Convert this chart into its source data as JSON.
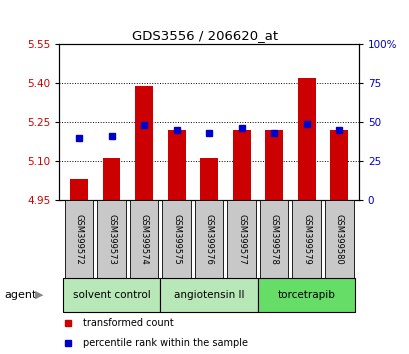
{
  "title": "GDS3556 / 206620_at",
  "samples": [
    "GSM399572",
    "GSM399573",
    "GSM399574",
    "GSM399575",
    "GSM399576",
    "GSM399577",
    "GSM399578",
    "GSM399579",
    "GSM399580"
  ],
  "red_values": [
    5.03,
    5.11,
    5.39,
    5.22,
    5.11,
    5.22,
    5.22,
    5.42,
    5.22
  ],
  "blue_percentiles": [
    40,
    41,
    48,
    45,
    43,
    46,
    43,
    49,
    45
  ],
  "ylim_left": [
    4.95,
    5.55
  ],
  "ylim_right": [
    0,
    100
  ],
  "yticks_left": [
    4.95,
    5.1,
    5.25,
    5.4,
    5.55
  ],
  "yticks_right": [
    0,
    25,
    50,
    75,
    100
  ],
  "ytick_labels_right": [
    "0",
    "25",
    "50",
    "75",
    "100%"
  ],
  "grid_lines": [
    5.1,
    5.25,
    5.4
  ],
  "bar_bottom": 4.95,
  "groups": [
    {
      "label": "solvent control",
      "indices": [
        0,
        1,
        2
      ],
      "color": "#b8e8b8"
    },
    {
      "label": "angiotensin II",
      "indices": [
        3,
        4,
        5
      ],
      "color": "#b8e8b8"
    },
    {
      "label": "torcetrapib",
      "indices": [
        6,
        7,
        8
      ],
      "color": "#66dd66"
    }
  ],
  "red_color": "#cc0000",
  "blue_color": "#0000cc",
  "bar_width": 0.55,
  "legend_red": "transformed count",
  "legend_blue": "percentile rank within the sample",
  "agent_label": "agent",
  "label_box_color": "#c8c8c8"
}
